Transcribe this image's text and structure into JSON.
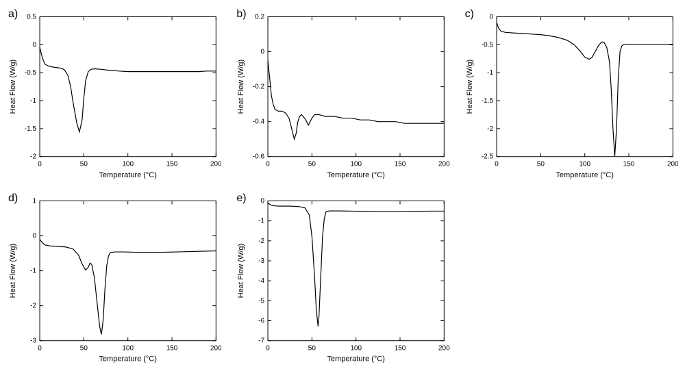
{
  "layout": {
    "cols": 3,
    "rows": 2,
    "background_color": "#ffffff",
    "line_color": "#000000",
    "font_family": "Arial",
    "label_fontsize": 16,
    "tick_fontsize": 10,
    "axis_title_fontsize": 11
  },
  "panels": {
    "a": {
      "label": "a)",
      "type": "line",
      "xlabel": "Temperature (°C)",
      "ylabel": "Heat Flow (W/g)",
      "xlim": [
        0,
        200
      ],
      "ylim": [
        -2.0,
        0.5
      ],
      "xticks": [
        0,
        50,
        100,
        150,
        200
      ],
      "yticks": [
        -2.0,
        -1.5,
        -1.0,
        -0.5,
        0.0,
        0.5
      ],
      "data": [
        [
          0,
          -0.05
        ],
        [
          2,
          -0.18
        ],
        [
          4,
          -0.28
        ],
        [
          6,
          -0.35
        ],
        [
          10,
          -0.38
        ],
        [
          15,
          -0.4
        ],
        [
          20,
          -0.41
        ],
        [
          25,
          -0.42
        ],
        [
          28,
          -0.45
        ],
        [
          32,
          -0.55
        ],
        [
          35,
          -0.75
        ],
        [
          38,
          -1.05
        ],
        [
          42,
          -1.4
        ],
        [
          45,
          -1.56
        ],
        [
          48,
          -1.35
        ],
        [
          50,
          -0.95
        ],
        [
          52,
          -0.65
        ],
        [
          55,
          -0.48
        ],
        [
          58,
          -0.44
        ],
        [
          62,
          -0.43
        ],
        [
          70,
          -0.44
        ],
        [
          80,
          -0.46
        ],
        [
          90,
          -0.47
        ],
        [
          100,
          -0.48
        ],
        [
          110,
          -0.48
        ],
        [
          120,
          -0.48
        ],
        [
          130,
          -0.48
        ],
        [
          140,
          -0.48
        ],
        [
          150,
          -0.48
        ],
        [
          160,
          -0.48
        ],
        [
          170,
          -0.48
        ],
        [
          180,
          -0.48
        ],
        [
          190,
          -0.47
        ],
        [
          200,
          -0.47
        ]
      ]
    },
    "b": {
      "label": "b)",
      "type": "line",
      "xlabel": "Temperature (°C)",
      "ylabel": "Heat Flow (W/g)",
      "xlim": [
        0,
        200
      ],
      "ylim": [
        -0.6,
        0.2
      ],
      "xticks": [
        0,
        50,
        100,
        150,
        200
      ],
      "yticks": [
        -0.6,
        -0.4,
        -0.2,
        0.0,
        0.2
      ],
      "data": [
        [
          0,
          -0.05
        ],
        [
          2,
          -0.15
        ],
        [
          4,
          -0.25
        ],
        [
          6,
          -0.3
        ],
        [
          8,
          -0.33
        ],
        [
          12,
          -0.34
        ],
        [
          16,
          -0.34
        ],
        [
          20,
          -0.35
        ],
        [
          24,
          -0.38
        ],
        [
          27,
          -0.44
        ],
        [
          30,
          -0.5
        ],
        [
          32,
          -0.47
        ],
        [
          34,
          -0.4
        ],
        [
          36,
          -0.37
        ],
        [
          38,
          -0.36
        ],
        [
          40,
          -0.37
        ],
        [
          43,
          -0.39
        ],
        [
          46,
          -0.42
        ],
        [
          48,
          -0.4
        ],
        [
          50,
          -0.38
        ],
        [
          53,
          -0.36
        ],
        [
          58,
          -0.36
        ],
        [
          65,
          -0.37
        ],
        [
          75,
          -0.37
        ],
        [
          85,
          -0.38
        ],
        [
          95,
          -0.38
        ],
        [
          105,
          -0.39
        ],
        [
          115,
          -0.39
        ],
        [
          125,
          -0.4
        ],
        [
          135,
          -0.4
        ],
        [
          145,
          -0.4
        ],
        [
          155,
          -0.41
        ],
        [
          165,
          -0.41
        ],
        [
          175,
          -0.41
        ],
        [
          185,
          -0.41
        ],
        [
          195,
          -0.41
        ],
        [
          200,
          -0.41
        ]
      ]
    },
    "c": {
      "label": "c)",
      "type": "line",
      "xlabel": "Temperature (°C)",
      "ylabel": "Heat Flow (W/g)",
      "xlim": [
        0,
        200
      ],
      "ylim": [
        -2.5,
        0.0
      ],
      "xticks": [
        0,
        50,
        100,
        150,
        200
      ],
      "yticks": [
        -2.5,
        -2.0,
        -1.5,
        -1.0,
        -0.5,
        0.0
      ],
      "data": [
        [
          0,
          -0.1
        ],
        [
          2,
          -0.2
        ],
        [
          5,
          -0.26
        ],
        [
          10,
          -0.28
        ],
        [
          20,
          -0.29
        ],
        [
          30,
          -0.3
        ],
        [
          40,
          -0.31
        ],
        [
          50,
          -0.32
        ],
        [
          60,
          -0.34
        ],
        [
          70,
          -0.37
        ],
        [
          80,
          -0.42
        ],
        [
          88,
          -0.5
        ],
        [
          95,
          -0.62
        ],
        [
          100,
          -0.72
        ],
        [
          105,
          -0.76
        ],
        [
          108,
          -0.73
        ],
        [
          112,
          -0.62
        ],
        [
          115,
          -0.53
        ],
        [
          118,
          -0.47
        ],
        [
          120,
          -0.45
        ],
        [
          122,
          -0.46
        ],
        [
          125,
          -0.55
        ],
        [
          128,
          -0.8
        ],
        [
          130,
          -1.3
        ],
        [
          132,
          -2.0
        ],
        [
          134,
          -2.5
        ],
        [
          136,
          -2.0
        ],
        [
          138,
          -1.1
        ],
        [
          140,
          -0.62
        ],
        [
          142,
          -0.52
        ],
        [
          145,
          -0.49
        ],
        [
          150,
          -0.49
        ],
        [
          160,
          -0.49
        ],
        [
          170,
          -0.49
        ],
        [
          180,
          -0.49
        ],
        [
          190,
          -0.49
        ],
        [
          200,
          -0.49
        ]
      ]
    },
    "d": {
      "label": "d)",
      "type": "line",
      "xlabel": "Temperature (°C)",
      "ylabel": "Heat Flow (W/g)",
      "xlim": [
        0,
        200
      ],
      "ylim": [
        -3,
        1
      ],
      "xticks": [
        0,
        50,
        100,
        150,
        200
      ],
      "yticks": [
        -3,
        -2,
        -1,
        0,
        1
      ],
      "data": [
        [
          0,
          -0.1
        ],
        [
          3,
          -0.2
        ],
        [
          6,
          -0.26
        ],
        [
          12,
          -0.29
        ],
        [
          20,
          -0.3
        ],
        [
          30,
          -0.32
        ],
        [
          38,
          -0.38
        ],
        [
          44,
          -0.55
        ],
        [
          48,
          -0.8
        ],
        [
          52,
          -0.98
        ],
        [
          55,
          -0.9
        ],
        [
          57,
          -0.78
        ],
        [
          59,
          -0.82
        ],
        [
          62,
          -1.2
        ],
        [
          65,
          -1.9
        ],
        [
          68,
          -2.6
        ],
        [
          70,
          -2.82
        ],
        [
          72,
          -2.4
        ],
        [
          74,
          -1.5
        ],
        [
          76,
          -0.85
        ],
        [
          78,
          -0.58
        ],
        [
          80,
          -0.48
        ],
        [
          85,
          -0.46
        ],
        [
          95,
          -0.46
        ],
        [
          110,
          -0.47
        ],
        [
          125,
          -0.47
        ],
        [
          140,
          -0.47
        ],
        [
          155,
          -0.46
        ],
        [
          170,
          -0.45
        ],
        [
          185,
          -0.44
        ],
        [
          200,
          -0.43
        ]
      ]
    },
    "e": {
      "label": "e)",
      "type": "line",
      "xlabel": "Temperature (°C)",
      "ylabel": "Heat Flow (W/g)",
      "xlim": [
        0,
        200
      ],
      "ylim": [
        -7,
        0
      ],
      "xticks": [
        0,
        50,
        100,
        150,
        200
      ],
      "yticks": [
        -7,
        -6,
        -5,
        -4,
        -3,
        -2,
        -1,
        0
      ],
      "data": [
        [
          0,
          -0.1
        ],
        [
          3,
          -0.2
        ],
        [
          8,
          -0.25
        ],
        [
          15,
          -0.26
        ],
        [
          25,
          -0.26
        ],
        [
          35,
          -0.28
        ],
        [
          42,
          -0.35
        ],
        [
          47,
          -0.7
        ],
        [
          50,
          -1.8
        ],
        [
          53,
          -3.8
        ],
        [
          55,
          -5.5
        ],
        [
          57,
          -6.28
        ],
        [
          58,
          -5.8
        ],
        [
          60,
          -3.8
        ],
        [
          62,
          -1.8
        ],
        [
          64,
          -0.9
        ],
        [
          66,
          -0.55
        ],
        [
          70,
          -0.5
        ],
        [
          80,
          -0.5
        ],
        [
          95,
          -0.51
        ],
        [
          110,
          -0.52
        ],
        [
          125,
          -0.53
        ],
        [
          140,
          -0.53
        ],
        [
          155,
          -0.53
        ],
        [
          170,
          -0.52
        ],
        [
          185,
          -0.51
        ],
        [
          200,
          -0.51
        ]
      ]
    }
  }
}
